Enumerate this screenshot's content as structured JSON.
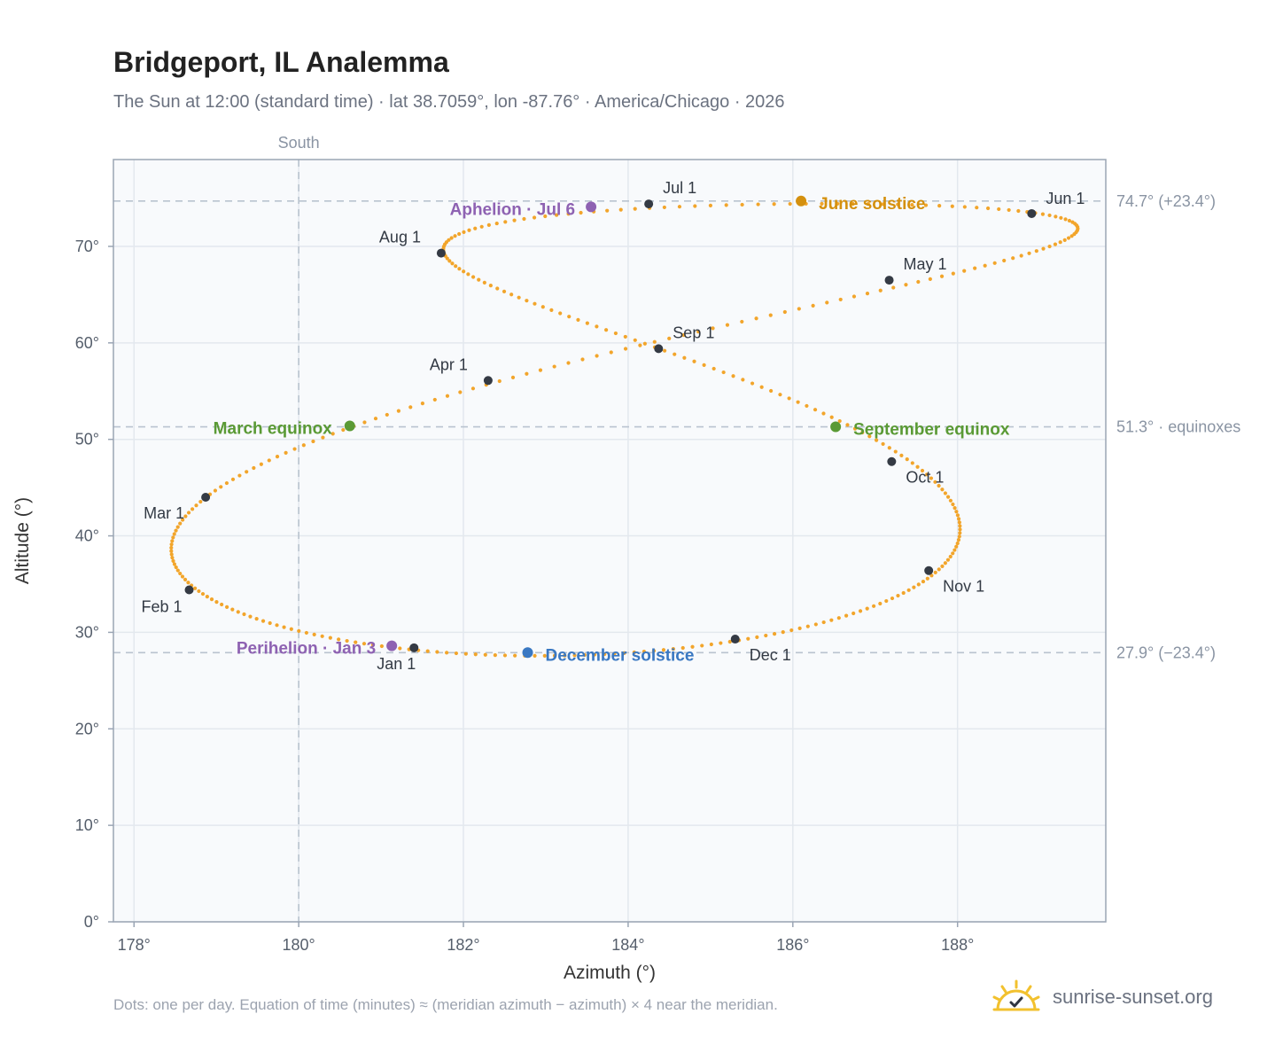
{
  "header": {
    "title": "Bridgeport, IL Analemma",
    "subtitle": "The Sun at 12:00 (standard time) · lat 38.7059°, lon -87.76° · America/Chicago · 2026"
  },
  "footer": {
    "note": "Dots: one per day. Equation of time (minutes) ≈ (meridian azimuth − azimuth) × 4 near the meridian.",
    "brand": "sunrise-sunset.org"
  },
  "chart_data": {
    "type": "scatter",
    "xlabel": "Azimuth (°)",
    "ylabel": "Altitude (°)",
    "xlim": [
      177.75,
      189.8
    ],
    "ylim": [
      0,
      79
    ],
    "x_ticks": [
      {
        "value": 178,
        "label": "178°"
      },
      {
        "value": 180,
        "label": "180°"
      },
      {
        "value": 182,
        "label": "182°"
      },
      {
        "value": 184,
        "label": "184°"
      },
      {
        "value": 186,
        "label": "186°"
      },
      {
        "value": 188,
        "label": "188°"
      }
    ],
    "y_ticks": [
      {
        "value": 0,
        "label": "0°"
      },
      {
        "value": 10,
        "label": "10°"
      },
      {
        "value": 20,
        "label": "20°"
      },
      {
        "value": 30,
        "label": "30°"
      },
      {
        "value": 40,
        "label": "40°"
      },
      {
        "value": 50,
        "label": "50°"
      },
      {
        "value": 60,
        "label": "60°"
      },
      {
        "value": 70,
        "label": "70°"
      }
    ],
    "grid": true,
    "meridian": {
      "azimuth": 180,
      "label": "South"
    },
    "reference_lines": [
      {
        "altitude": 74.7,
        "label": "74.7° (+23.4°)"
      },
      {
        "altitude": 51.3,
        "label": "51.3° · equinoxes"
      },
      {
        "altitude": 27.9,
        "label": "27.9° (−23.4°)"
      }
    ],
    "colors": {
      "curve": "#f2a52b",
      "month": "#343a44",
      "solstice_june": "#d4900e",
      "solstice_december": "#3a78c2",
      "equinox": "#5a9a35",
      "apsis": "#8e62b2",
      "plot_bg": "#f8fafc",
      "grid": "#e3e8ee",
      "ref_line": "#b9c3cf"
    },
    "year": 2026,
    "latitude": 38.7059,
    "longitude": -87.76,
    "noon_standard_time": "12:00",
    "month_points": [
      {
        "label": "Jan 1",
        "azimuth": 181.4,
        "altitude": 28.4
      },
      {
        "label": "Feb 1",
        "azimuth": 178.67,
        "altitude": 34.4
      },
      {
        "label": "Mar 1",
        "azimuth": 178.87,
        "altitude": 44.0
      },
      {
        "label": "Apr 1",
        "azimuth": 182.3,
        "altitude": 56.1
      },
      {
        "label": "May 1",
        "azimuth": 187.17,
        "altitude": 66.5
      },
      {
        "label": "Jun 1",
        "azimuth": 188.9,
        "altitude": 73.4
      },
      {
        "label": "Jul 1",
        "azimuth": 184.25,
        "altitude": 74.4
      },
      {
        "label": "Aug 1",
        "azimuth": 181.73,
        "altitude": 69.3
      },
      {
        "label": "Sep 1",
        "azimuth": 184.37,
        "altitude": 59.4
      },
      {
        "label": "Oct 1",
        "azimuth": 187.2,
        "altitude": 47.7
      },
      {
        "label": "Nov 1",
        "azimuth": 187.65,
        "altitude": 36.4
      },
      {
        "label": "Dec 1",
        "azimuth": 185.3,
        "altitude": 29.3
      }
    ],
    "events": [
      {
        "label": "June solstice",
        "azimuth": 186.1,
        "altitude": 74.7,
        "kind": "solstice_june"
      },
      {
        "label": "December solstice",
        "azimuth": 182.78,
        "altitude": 27.9,
        "kind": "solstice_december"
      },
      {
        "label": "March equinox",
        "azimuth": 180.62,
        "altitude": 51.4,
        "kind": "equinox"
      },
      {
        "label": "September equinox",
        "azimuth": 186.52,
        "altitude": 51.3,
        "kind": "equinox"
      },
      {
        "label": "Aphelion · Jul 6",
        "azimuth": 183.55,
        "altitude": 74.1,
        "kind": "apsis"
      },
      {
        "label": "Perihelion · Jan 3",
        "azimuth": 181.13,
        "altitude": 28.6,
        "kind": "apsis"
      }
    ]
  }
}
